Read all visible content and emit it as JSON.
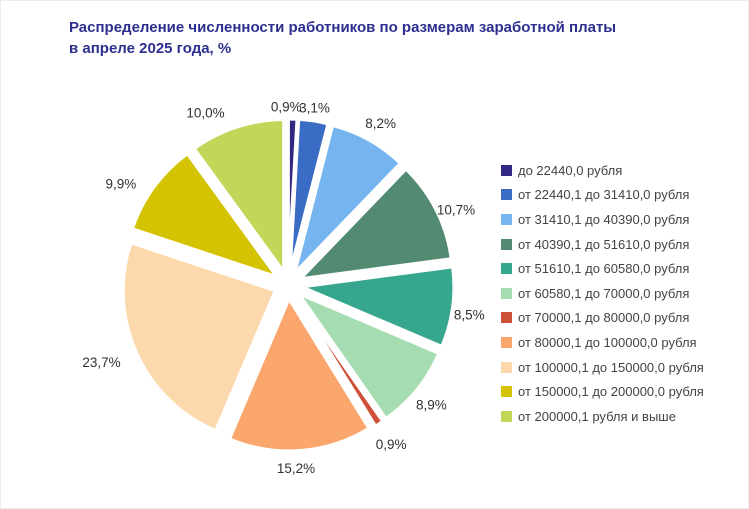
{
  "title": {
    "line1": "Распределение численности работников по размерам заработной платы",
    "line2": "в апреле 2025 года, %"
  },
  "chart_data": {
    "type": "pie",
    "title": "Распределение численности работников по размерам заработной платы в апреле 2025 года, %",
    "start_angle_deg": -90,
    "direction": "clockwise",
    "exploded": true,
    "legend_position": "right",
    "categories": [
      "до 22440,0 рубля",
      "от 22440,1 до 31410,0 рубля",
      "от 31410,1 до 40390,0 рубля",
      "от 40390,1 до 51610,0 рубля",
      "от 51610,1 до 60580,0 рубля",
      "от 60580,1 до 70000,0 рубля",
      "от 70000,1 до 80000,0 рубля",
      "от 80000,1 до 100000,0 рубля",
      "от 100000,1 до 150000,0 рубля",
      "от 150000,1 до 200000,0 рубля",
      "от 200000,1 рубля и выше"
    ],
    "values": [
      0.9,
      3.1,
      8.2,
      10.7,
      8.5,
      8.9,
      0.9,
      15.2,
      23.7,
      9.9,
      10.0
    ],
    "display_labels": [
      "0,9%",
      "3,1%",
      "8,2%",
      "10,7%",
      "8,5%",
      "8,9%",
      "0,9%",
      "15,2%",
      "23,7%",
      "9,9%",
      "10,0%"
    ],
    "colors": [
      "#312884",
      "#3a6bc5",
      "#76b4ef",
      "#528b71",
      "#36a78e",
      "#a6dcb1",
      "#cf5038",
      "#faa66c",
      "#fcd8ad",
      "#d3c303",
      "#c2d65a"
    ]
  },
  "colors": {
    "title_text": "#2d2f8f",
    "slice_label_text": "#303030",
    "legend_text": "#434343",
    "background": "#ffffff"
  }
}
